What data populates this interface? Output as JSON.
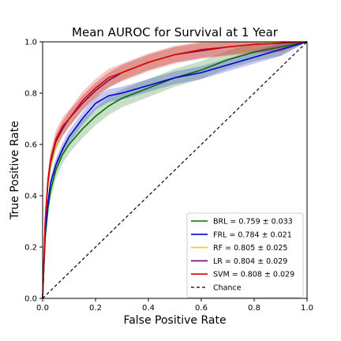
{
  "chart_data": {
    "type": "line",
    "title": "Mean AUROC for Survival at 1 Year",
    "xlabel": "False Positive Rate",
    "ylabel": "True Positive Rate",
    "xlim": [
      0,
      1
    ],
    "ylim": [
      0,
      1
    ],
    "xticks": [
      "0.0",
      "0.2",
      "0.4",
      "0.6",
      "0.8",
      "1.0"
    ],
    "yticks": [
      "0.0",
      "0.2",
      "0.4",
      "0.6",
      "0.8",
      "1.0"
    ],
    "grid": false,
    "legend_position": "bottom-right",
    "series": [
      {
        "name": "BRL = 0.759 ± 0.033",
        "color": "#007000",
        "band": 0.035,
        "x": [
          0,
          0.01,
          0.02,
          0.03,
          0.05,
          0.075,
          0.1,
          0.15,
          0.2,
          0.25,
          0.3,
          0.4,
          0.5,
          0.6,
          0.7,
          0.8,
          0.9,
          1.0
        ],
        "y": [
          0,
          0.24,
          0.35,
          0.42,
          0.5,
          0.56,
          0.6,
          0.66,
          0.71,
          0.75,
          0.78,
          0.82,
          0.86,
          0.89,
          0.93,
          0.96,
          0.98,
          1.0
        ]
      },
      {
        "name": "FRL = 0.784 ± 0.021",
        "color": "#0000cc",
        "band": 0.025,
        "x": [
          0,
          0.01,
          0.02,
          0.03,
          0.05,
          0.075,
          0.1,
          0.15,
          0.2,
          0.25,
          0.3,
          0.4,
          0.5,
          0.6,
          0.7,
          0.8,
          0.9,
          1.0
        ],
        "y": [
          0,
          0.26,
          0.37,
          0.45,
          0.52,
          0.58,
          0.63,
          0.7,
          0.76,
          0.79,
          0.8,
          0.83,
          0.86,
          0.88,
          0.91,
          0.94,
          0.97,
          1.0
        ]
      },
      {
        "name": "RF = 0.805 ± 0.025",
        "color": "#f0d000",
        "band": 0.03,
        "x": [
          0,
          0.01,
          0.02,
          0.03,
          0.05,
          0.075,
          0.1,
          0.15,
          0.2,
          0.25,
          0.3,
          0.4,
          0.5,
          0.6,
          0.7,
          0.8,
          0.9,
          1.0
        ],
        "y": [
          0,
          0.3,
          0.44,
          0.52,
          0.6,
          0.66,
          0.7,
          0.76,
          0.81,
          0.85,
          0.88,
          0.92,
          0.95,
          0.97,
          0.98,
          0.99,
          1.0,
          1.0
        ]
      },
      {
        "name": "LR = 0.804 ± 0.029",
        "color": "#7a007a",
        "band": 0.03,
        "x": [
          0,
          0.01,
          0.02,
          0.03,
          0.05,
          0.075,
          0.1,
          0.15,
          0.2,
          0.25,
          0.3,
          0.4,
          0.5,
          0.6,
          0.7,
          0.8,
          0.9,
          1.0
        ],
        "y": [
          0,
          0.3,
          0.45,
          0.53,
          0.61,
          0.66,
          0.7,
          0.76,
          0.81,
          0.85,
          0.88,
          0.92,
          0.95,
          0.965,
          0.98,
          0.99,
          0.995,
          1.0
        ]
      },
      {
        "name": "SVM = 0.808 ± 0.029",
        "color": "#dd0000",
        "band": 0.035,
        "x": [
          0,
          0.01,
          0.02,
          0.03,
          0.05,
          0.075,
          0.1,
          0.15,
          0.2,
          0.25,
          0.3,
          0.4,
          0.5,
          0.6,
          0.7,
          0.8,
          0.9,
          1.0
        ],
        "y": [
          0,
          0.31,
          0.46,
          0.54,
          0.62,
          0.67,
          0.7,
          0.77,
          0.82,
          0.86,
          0.88,
          0.92,
          0.95,
          0.97,
          0.98,
          0.99,
          0.995,
          1.0
        ]
      },
      {
        "name": "Chance",
        "color": "#000000",
        "dashed": true,
        "x": [
          0,
          1
        ],
        "y": [
          0,
          1
        ]
      }
    ]
  }
}
